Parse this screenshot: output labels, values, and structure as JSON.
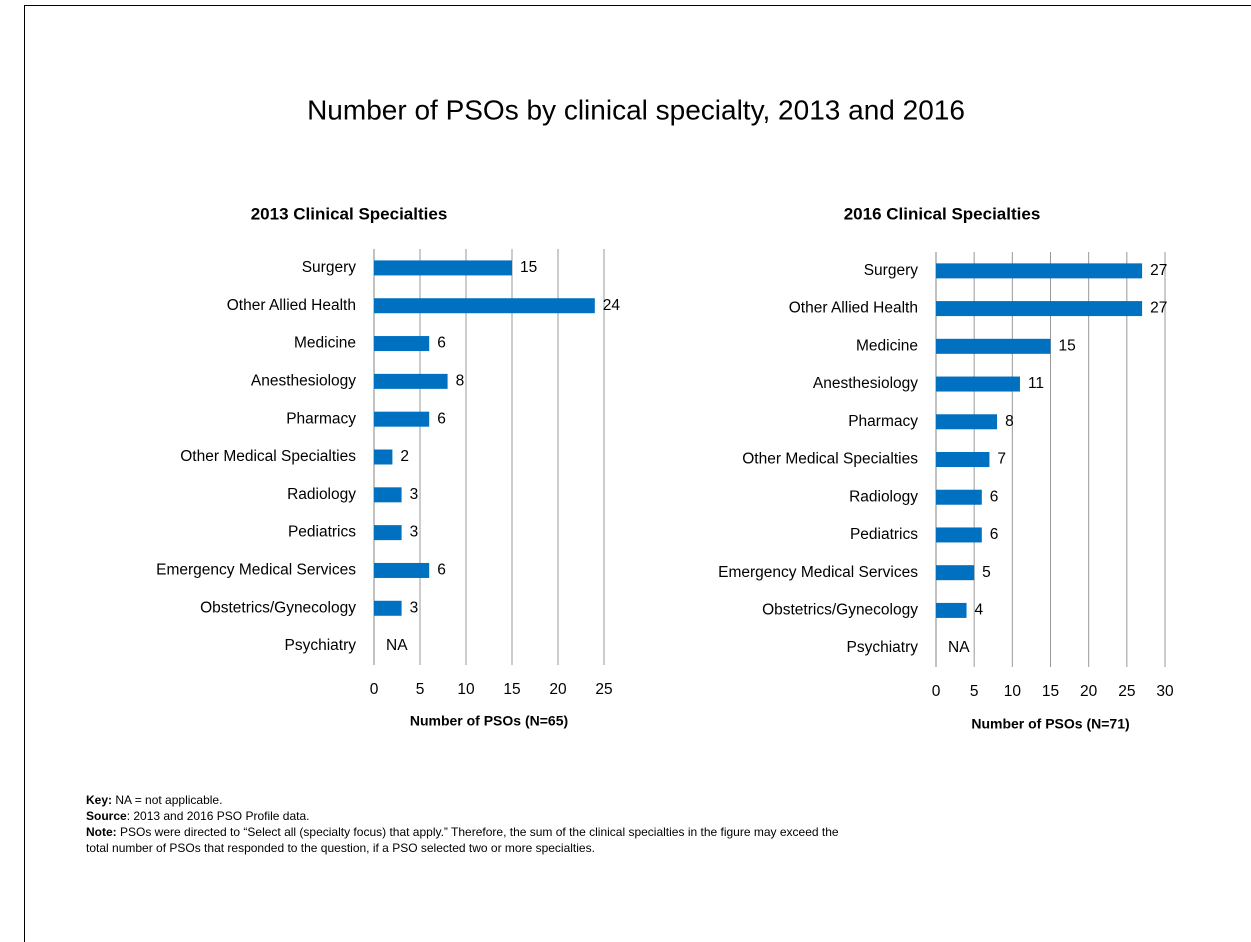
{
  "title": "Number of PSOs by clinical specialty, 2013 and 2016",
  "chart_data": [
    {
      "type": "bar",
      "orientation": "horizontal",
      "title": "2013 Clinical Specialties",
      "categories": [
        "Surgery",
        "Other Allied Health",
        "Medicine",
        "Anesthesiology",
        "Pharmacy",
        "Other Medical Specialties",
        "Radiology",
        "Pediatrics",
        "Emergency Medical Services",
        "Obstetrics/Gynecology",
        "Psychiatry"
      ],
      "values": [
        15,
        24,
        6,
        8,
        6,
        2,
        3,
        3,
        6,
        3,
        null
      ],
      "value_labels": [
        "15",
        "24",
        "6",
        "8",
        "6",
        "2",
        "3",
        "3",
        "6",
        "3",
        "NA"
      ],
      "xlim": [
        0,
        25
      ],
      "xticks": [
        0,
        5,
        10,
        15,
        20,
        25
      ],
      "xlabel": "Number of PSOs (N=65)",
      "color": "#0070c0",
      "grid": true
    },
    {
      "type": "bar",
      "orientation": "horizontal",
      "title": "2016 Clinical Specialties",
      "categories": [
        "Surgery",
        "Other Allied Health",
        "Medicine",
        "Anesthesiology",
        "Pharmacy",
        "Other Medical Specialties",
        "Radiology",
        "Pediatrics",
        "Emergency Medical Services",
        "Obstetrics/Gynecology",
        "Psychiatry"
      ],
      "values": [
        27,
        27,
        15,
        11,
        8,
        7,
        6,
        6,
        5,
        4,
        null
      ],
      "value_labels": [
        "27",
        "27",
        "15",
        "11",
        "8",
        "7",
        "6",
        "6",
        "5",
        "4",
        "NA"
      ],
      "xlim": [
        0,
        30
      ],
      "xticks": [
        0,
        5,
        10,
        15,
        20,
        25,
        30
      ],
      "xlabel": "Number of PSOs (N=71)",
      "color": "#0070c0",
      "grid": true
    }
  ],
  "notes": [
    {
      "label": "Key:",
      "text": " NA = not applicable."
    },
    {
      "label": "Source",
      "text": ": 2013 and 2016 PSO Profile data."
    },
    {
      "label": "Note:",
      "text": " PSOs were directed to “Select all (specialty focus) that apply.” Therefore, the sum of the clinical specialties in the figure may exceed the"
    },
    {
      "text": "total number of PSOs that responded to the question, if a PSO selected two or more specialties."
    }
  ]
}
